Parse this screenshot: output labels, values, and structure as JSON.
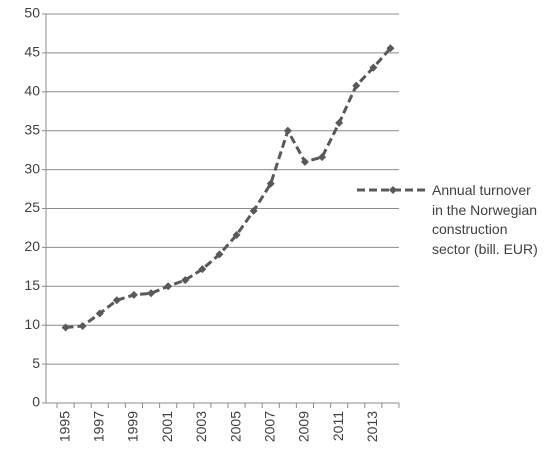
{
  "chart_data": {
    "type": "line",
    "categories": [
      "1995",
      null,
      "1997",
      null,
      "1999",
      null,
      "2001",
      null,
      "2003",
      null,
      "2005",
      null,
      "2007",
      null,
      "2009",
      null,
      "2011",
      null,
      "2013",
      null
    ],
    "series": [
      {
        "name": "Annual turnover in the Norwegian construction sector (bill. EUR)",
        "color": "#595959",
        "values": [
          9.7,
          9.9,
          11.5,
          13.2,
          13.9,
          14.1,
          15.0,
          15.8,
          17.2,
          19.1,
          21.6,
          24.7,
          28.2,
          35.0,
          31.0,
          31.6,
          36.0,
          40.8,
          43.1,
          45.6
        ]
      }
    ],
    "ylim": [
      0,
      50
    ],
    "yticks": [
      0,
      5,
      10,
      15,
      20,
      25,
      30,
      35,
      40,
      45,
      50
    ],
    "grid": true,
    "legend": "right"
  }
}
